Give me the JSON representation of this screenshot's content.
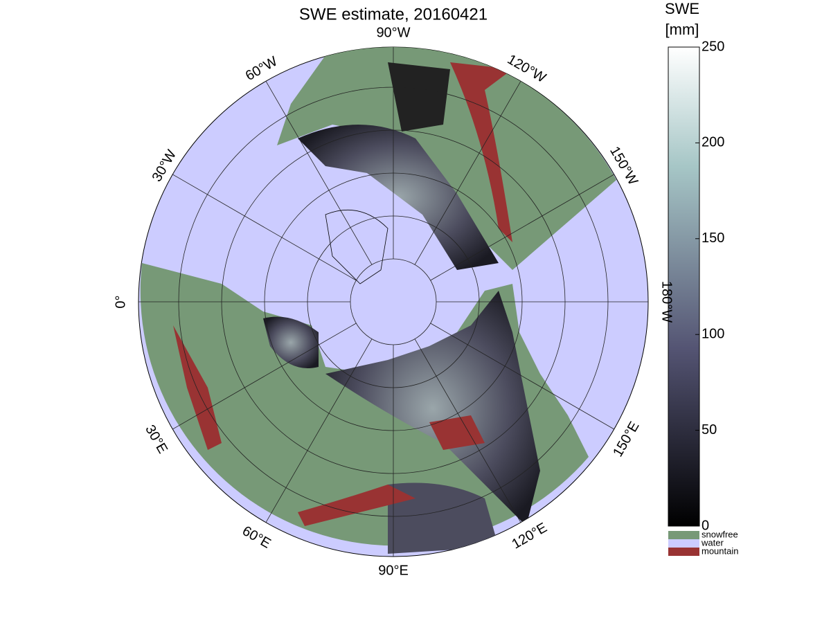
{
  "map": {
    "title": "SWE estimate, 20160421",
    "longitude_labels": [
      "90°W",
      "120°W",
      "150°W",
      "180°W",
      "150°E",
      "120°E",
      "90°E",
      "60°E",
      "30°E",
      "0°",
      "30°W",
      "60°W"
    ],
    "colorbar": {
      "label": [
        "SWE",
        "[mm]"
      ],
      "range": [
        0,
        250
      ],
      "ticks": [
        0,
        50,
        100,
        150,
        200,
        250
      ],
      "legend": [
        {
          "name": "snowfree",
          "color": "#779977"
        },
        {
          "name": "water",
          "color": "#ccccff"
        },
        {
          "name": "mountain",
          "color": "#993333"
        }
      ]
    }
  }
}
